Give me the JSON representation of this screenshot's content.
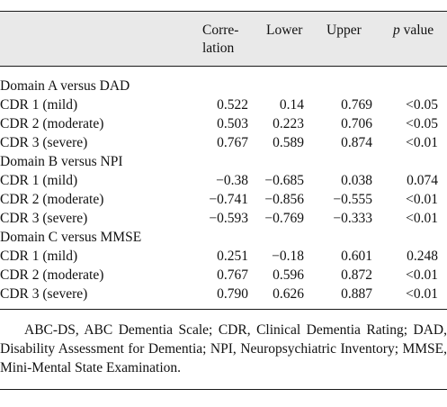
{
  "table": {
    "headers": {
      "correlation_line1": "Corre-",
      "correlation_line2": "lation",
      "lower": "Lower",
      "upper": "Upper",
      "p_italic": "p",
      "p_rest": " value"
    },
    "sections": [
      {
        "title": "Domain A versus DAD",
        "rows": [
          {
            "label": "CDR 1 (mild)",
            "correlation": "0.522",
            "lower": "0.14",
            "upper": "0.769",
            "p": "<0.05"
          },
          {
            "label": "CDR 2 (moderate)",
            "correlation": "0.503",
            "lower": "0.223",
            "upper": "0.706",
            "p": "<0.05"
          },
          {
            "label": "CDR 3 (severe)",
            "correlation": "0.767",
            "lower": "0.589",
            "upper": "0.874",
            "p": "<0.01"
          }
        ]
      },
      {
        "title": "Domain B versus NPI",
        "rows": [
          {
            "label": "CDR 1 (mild)",
            "correlation": "−0.38",
            "lower": "−0.685",
            "upper": "0.038",
            "p": "0.074"
          },
          {
            "label": "CDR 2 (moderate)",
            "correlation": "−0.741",
            "lower": "−0.856",
            "upper": "−0.555",
            "p": "<0.01"
          },
          {
            "label": "CDR 3 (severe)",
            "correlation": "−0.593",
            "lower": "−0.769",
            "upper": "−0.333",
            "p": "<0.01"
          }
        ]
      },
      {
        "title": "Domain C versus MMSE",
        "rows": [
          {
            "label": "CDR 1 (mild)",
            "correlation": "0.251",
            "lower": "−0.18",
            "upper": "0.601",
            "p": "0.248"
          },
          {
            "label": "CDR 2 (moderate)",
            "correlation": "0.767",
            "lower": "0.596",
            "upper": "0.872",
            "p": "<0.01"
          },
          {
            "label": "CDR 3 (severe)",
            "correlation": "0.790",
            "lower": "0.626",
            "upper": "0.887",
            "p": "<0.01"
          }
        ]
      }
    ],
    "footnote": "ABC-DS, ABC Dementia Scale; CDR, Clinical Dementia Rating; DAD, Disability Assessment for Dementia; NPI, Neuropsychiatric Inventory; MMSE, Mini-Mental State Examination."
  }
}
